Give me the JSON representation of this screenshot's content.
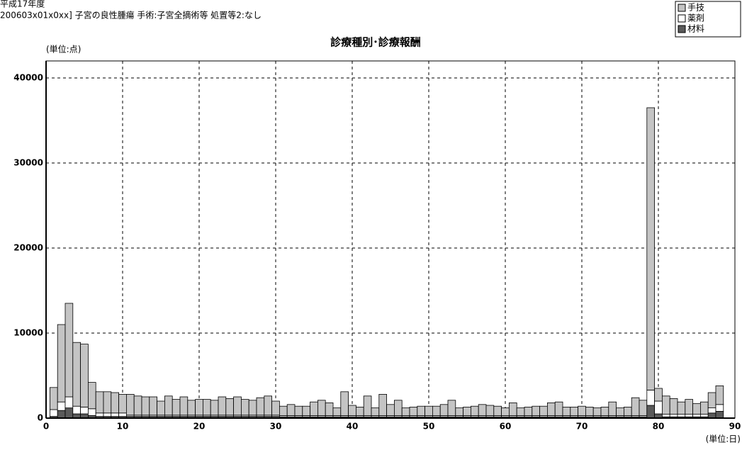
{
  "chart_data": {
    "type": "stacked_bar",
    "header": [
      "平成17年度",
      "200603x01x0xx] 子宮の良性腫瘍 手術:子宮全摘術等 処置等2:なし"
    ],
    "title": "診療種別･診療報酬",
    "y_label": "(単位:点)",
    "x_label": "(単位:日)",
    "x": [
      1,
      2,
      3,
      4,
      5,
      6,
      7,
      8,
      9,
      10,
      11,
      12,
      13,
      14,
      15,
      16,
      17,
      18,
      19,
      20,
      21,
      22,
      23,
      24,
      25,
      26,
      27,
      28,
      29,
      30,
      31,
      32,
      33,
      34,
      35,
      36,
      37,
      38,
      39,
      40,
      41,
      42,
      43,
      44,
      45,
      46,
      47,
      48,
      49,
      50,
      51,
      52,
      53,
      54,
      55,
      56,
      57,
      58,
      59,
      60,
      61,
      62,
      63,
      64,
      65,
      66,
      67,
      68,
      69,
      70,
      71,
      72,
      73,
      74,
      75,
      76,
      77,
      78,
      79,
      80,
      81,
      82,
      83,
      84,
      85,
      86,
      87,
      88
    ],
    "series": [
      {
        "name": "材料",
        "color": "#5a5a5a",
        "values": [
          200,
          900,
          1200,
          500,
          500,
          300,
          200,
          200,
          200,
          200,
          200,
          200,
          200,
          200,
          200,
          200,
          200,
          200,
          200,
          200,
          200,
          200,
          200,
          200,
          200,
          200,
          200,
          200,
          200,
          200,
          150,
          150,
          150,
          150,
          150,
          150,
          150,
          150,
          150,
          150,
          150,
          150,
          150,
          150,
          150,
          150,
          150,
          150,
          150,
          150,
          150,
          150,
          150,
          150,
          150,
          150,
          150,
          150,
          150,
          150,
          150,
          150,
          150,
          150,
          150,
          150,
          150,
          150,
          150,
          150,
          150,
          150,
          150,
          150,
          150,
          150,
          150,
          150,
          1500,
          500,
          150,
          150,
          150,
          150,
          150,
          150,
          600,
          800
        ]
      },
      {
        "name": "薬剤",
        "color": "#ffffff",
        "values": [
          800,
          1000,
          1300,
          900,
          800,
          800,
          400,
          400,
          400,
          400,
          150,
          150,
          150,
          150,
          150,
          150,
          150,
          150,
          150,
          150,
          150,
          150,
          150,
          150,
          150,
          150,
          150,
          150,
          150,
          150,
          150,
          150,
          150,
          150,
          150,
          150,
          150,
          150,
          150,
          150,
          150,
          150,
          150,
          150,
          150,
          150,
          150,
          150,
          150,
          150,
          150,
          150,
          150,
          150,
          150,
          150,
          150,
          150,
          150,
          150,
          150,
          150,
          150,
          150,
          150,
          150,
          150,
          150,
          150,
          150,
          150,
          150,
          150,
          150,
          150,
          150,
          150,
          150,
          1800,
          1500,
          300,
          300,
          300,
          300,
          300,
          300,
          600,
          800
        ]
      },
      {
        "name": "手技",
        "color": "#c4c4c4",
        "values": [
          2600,
          9100,
          11000,
          7500,
          7400,
          3100,
          2500,
          2500,
          2400,
          2200,
          2450,
          2250,
          2150,
          2150,
          1650,
          2250,
          1850,
          2150,
          1750,
          1850,
          1850,
          1750,
          2150,
          1950,
          2150,
          1850,
          1750,
          2050,
          2250,
          1650,
          1100,
          1300,
          1100,
          1100,
          1600,
          1800,
          1500,
          900,
          2800,
          1200,
          1000,
          2300,
          900,
          2500,
          1300,
          1800,
          900,
          1000,
          1100,
          1100,
          1100,
          1300,
          1800,
          900,
          1000,
          1100,
          1300,
          1200,
          1100,
          900,
          1500,
          900,
          1000,
          1100,
          1100,
          1500,
          1600,
          1000,
          1000,
          1100,
          1000,
          900,
          1000,
          1600,
          900,
          1000,
          2100,
          1800,
          33200,
          1500,
          2150,
          1850,
          1450,
          1750,
          1250,
          1450,
          1800,
          2200
        ]
      }
    ],
    "xlim": [
      0,
      90
    ],
    "xticks": [
      0,
      10,
      20,
      30,
      40,
      50,
      60,
      70,
      80,
      90
    ],
    "ylim": [
      0,
      42000
    ],
    "yticks": [
      0,
      10000,
      20000,
      30000,
      40000
    ],
    "grid": true,
    "legend": "top-right"
  }
}
